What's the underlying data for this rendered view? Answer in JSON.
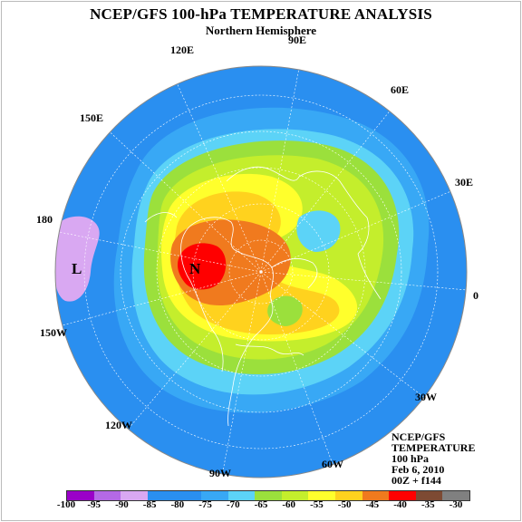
{
  "header": {
    "title": "NCEP/GFS 100-hPa TEMPERATURE ANALYSIS",
    "subtitle": "Northern Hemisphere"
  },
  "longitude_labels": [
    {
      "key": "90E",
      "text": "90E"
    },
    {
      "key": "120E",
      "text": "120E"
    },
    {
      "key": "60E",
      "text": "60E"
    },
    {
      "key": "150E",
      "text": "150E"
    },
    {
      "key": "30E",
      "text": "30E"
    },
    {
      "key": "180",
      "text": "180"
    },
    {
      "key": "0",
      "text": "0"
    },
    {
      "key": "150W",
      "text": "150W"
    },
    {
      "key": "30W",
      "text": "30W"
    },
    {
      "key": "120W",
      "text": "120W"
    },
    {
      "key": "60W",
      "text": "60W"
    },
    {
      "key": "90W",
      "text": "90W"
    }
  ],
  "markers": {
    "low": "L",
    "high": "N"
  },
  "info_block": {
    "line1": "NCEP/GFS",
    "line2": "TEMPERATURE",
    "line3": "100 hPa",
    "line4": "Feb 6, 2010",
    "line5": "00Z + f144"
  },
  "colorbar": {
    "colors": [
      "#9a00c8",
      "#b469e6",
      "#d9a8f2",
      "#2a8ff0",
      "#2a8ff0",
      "#38a8f5",
      "#5cd3f7",
      "#9be03c",
      "#c4ee2c",
      "#ffff2c",
      "#ffd21e",
      "#f07a1e",
      "#ff0000",
      "#7d4a33",
      "#808080"
    ],
    "labels": [
      "-100",
      "-95",
      "-90",
      "-85",
      "-80",
      "-75",
      "-70",
      "-65",
      "-60",
      "-55",
      "-50",
      "-45",
      "-40",
      "-35",
      "-30"
    ]
  },
  "colors": {
    "ocean_bg": "#2a8ff0",
    "band_75": "#38a8f5",
    "band_70": "#5cd3f7",
    "band_65": "#9be03c",
    "band_60": "#c4ee2c",
    "band_55": "#ffff2c",
    "band_50": "#ffd21e",
    "band_45": "#f07a1e",
    "band_40": "#ff0000",
    "cold": "#d9a8f2"
  }
}
